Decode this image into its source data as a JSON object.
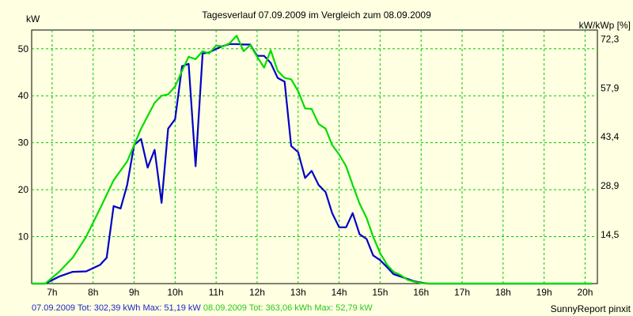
{
  "chart_data": {
    "type": "line",
    "title": "Tagesverlauf 07.09.2009 im Vergleich zum 08.09.2009",
    "ylabel_left": "kW",
    "ylabel_right": "kW/kWp [%]",
    "xlim": [
      6.5,
      20.3
    ],
    "ylim": [
      0,
      54
    ],
    "x_ticks": [
      {
        "value": 7,
        "label": "7h"
      },
      {
        "value": 8,
        "label": "8h"
      },
      {
        "value": 9,
        "label": "9h"
      },
      {
        "value": 10,
        "label": "10h"
      },
      {
        "value": 11,
        "label": "11h"
      },
      {
        "value": 12,
        "label": "12h"
      },
      {
        "value": 13,
        "label": "13h"
      },
      {
        "value": 14,
        "label": "14h"
      },
      {
        "value": 15,
        "label": "15h"
      },
      {
        "value": 16,
        "label": "16h"
      },
      {
        "value": 17,
        "label": "17h"
      },
      {
        "value": 18,
        "label": "18h"
      },
      {
        "value": 19,
        "label": "19h"
      },
      {
        "value": 20,
        "label": "20h"
      }
    ],
    "y_ticks_left": [
      {
        "value": 10,
        "label": "10"
      },
      {
        "value": 20,
        "label": "20"
      },
      {
        "value": 30,
        "label": "30"
      },
      {
        "value": 40,
        "label": "40"
      },
      {
        "value": 50,
        "label": "50"
      }
    ],
    "y_ticks_right": [
      {
        "value": 10.45,
        "label": "14,5"
      },
      {
        "value": 20.85,
        "label": "28,9"
      },
      {
        "value": 31.25,
        "label": "43,4"
      },
      {
        "value": 41.65,
        "label": "57,9"
      },
      {
        "value": 52.05,
        "label": "72,3"
      }
    ],
    "grid": true,
    "legend_items": [
      {
        "text": "07.09.2009 Tot: 302,39 kWh Max: 51,19 kW",
        "color": "#1C28C8"
      },
      {
        "text": "08.09.2009 Tot: 363,06 kWh Max: 52,79 kW",
        "color": "#28C81C"
      }
    ],
    "credit": "SunnyReport pinxit",
    "series": [
      {
        "color": "#0000C8",
        "points": [
          [
            6.5,
            0
          ],
          [
            6.83,
            0
          ],
          [
            7.17,
            1.5
          ],
          [
            7.5,
            2.5
          ],
          [
            7.83,
            2.6
          ],
          [
            8.17,
            4
          ],
          [
            8.33,
            5.5
          ],
          [
            8.5,
            16.5
          ],
          [
            8.67,
            16
          ],
          [
            8.83,
            21
          ],
          [
            9.0,
            29.5
          ],
          [
            9.17,
            30.8
          ],
          [
            9.33,
            24.7
          ],
          [
            9.5,
            28.5
          ],
          [
            9.67,
            17.2
          ],
          [
            9.83,
            33
          ],
          [
            10.0,
            35
          ],
          [
            10.17,
            46.3
          ],
          [
            10.33,
            46.8
          ],
          [
            10.5,
            25
          ],
          [
            10.67,
            49
          ],
          [
            10.83,
            49.2
          ],
          [
            11.0,
            50
          ],
          [
            11.17,
            50.6
          ],
          [
            11.33,
            51
          ],
          [
            11.5,
            51
          ],
          [
            11.67,
            50.9
          ],
          [
            11.83,
            50.9
          ],
          [
            12.0,
            48.5
          ],
          [
            12.17,
            48.5
          ],
          [
            12.33,
            47
          ],
          [
            12.5,
            43.8
          ],
          [
            12.67,
            43
          ],
          [
            12.83,
            29.3
          ],
          [
            13.0,
            28
          ],
          [
            13.17,
            22.5
          ],
          [
            13.33,
            24
          ],
          [
            13.5,
            21
          ],
          [
            13.67,
            19.5
          ],
          [
            13.83,
            15
          ],
          [
            14.0,
            12
          ],
          [
            14.17,
            12
          ],
          [
            14.33,
            15
          ],
          [
            14.5,
            10.5
          ],
          [
            14.67,
            9.5
          ],
          [
            14.83,
            6
          ],
          [
            15.0,
            5
          ],
          [
            15.17,
            3.5
          ],
          [
            15.33,
            2
          ],
          [
            15.5,
            1.5
          ],
          [
            15.67,
            1
          ],
          [
            15.83,
            0.5
          ],
          [
            16.0,
            0.2
          ],
          [
            16.17,
            0
          ],
          [
            16.5,
            0
          ],
          [
            20.17,
            0
          ]
        ]
      },
      {
        "color": "#00DC00",
        "points": [
          [
            6.5,
            0
          ],
          [
            6.83,
            0
          ],
          [
            7.17,
            2.5
          ],
          [
            7.5,
            5.5
          ],
          [
            7.83,
            10
          ],
          [
            8.17,
            16
          ],
          [
            8.5,
            22
          ],
          [
            8.83,
            26
          ],
          [
            9.17,
            33
          ],
          [
            9.5,
            38.5
          ],
          [
            9.67,
            40
          ],
          [
            9.83,
            40.3
          ],
          [
            10.0,
            42
          ],
          [
            10.17,
            45.3
          ],
          [
            10.33,
            48.3
          ],
          [
            10.5,
            47.8
          ],
          [
            10.67,
            49.5
          ],
          [
            10.83,
            49
          ],
          [
            11.0,
            50.7
          ],
          [
            11.17,
            50.5
          ],
          [
            11.33,
            51.2
          ],
          [
            11.5,
            52.79
          ],
          [
            11.67,
            49.5
          ],
          [
            11.83,
            50.8
          ],
          [
            12.0,
            48.3
          ],
          [
            12.17,
            46
          ],
          [
            12.33,
            49.7
          ],
          [
            12.5,
            45.3
          ],
          [
            12.67,
            43.8
          ],
          [
            12.83,
            43.5
          ],
          [
            13.0,
            41
          ],
          [
            13.17,
            37.3
          ],
          [
            13.33,
            37.2
          ],
          [
            13.5,
            34
          ],
          [
            13.67,
            33
          ],
          [
            13.83,
            29.5
          ],
          [
            14.0,
            27.5
          ],
          [
            14.17,
            25
          ],
          [
            14.33,
            21
          ],
          [
            14.5,
            17
          ],
          [
            14.67,
            14
          ],
          [
            14.83,
            10
          ],
          [
            15.0,
            6.5
          ],
          [
            15.17,
            4
          ],
          [
            15.33,
            2.5
          ],
          [
            15.5,
            1.8
          ],
          [
            15.67,
            0.8
          ],
          [
            15.83,
            0.4
          ],
          [
            16.0,
            0.1
          ],
          [
            16.17,
            0
          ],
          [
            16.5,
            0
          ],
          [
            20.17,
            0
          ]
        ]
      }
    ]
  }
}
